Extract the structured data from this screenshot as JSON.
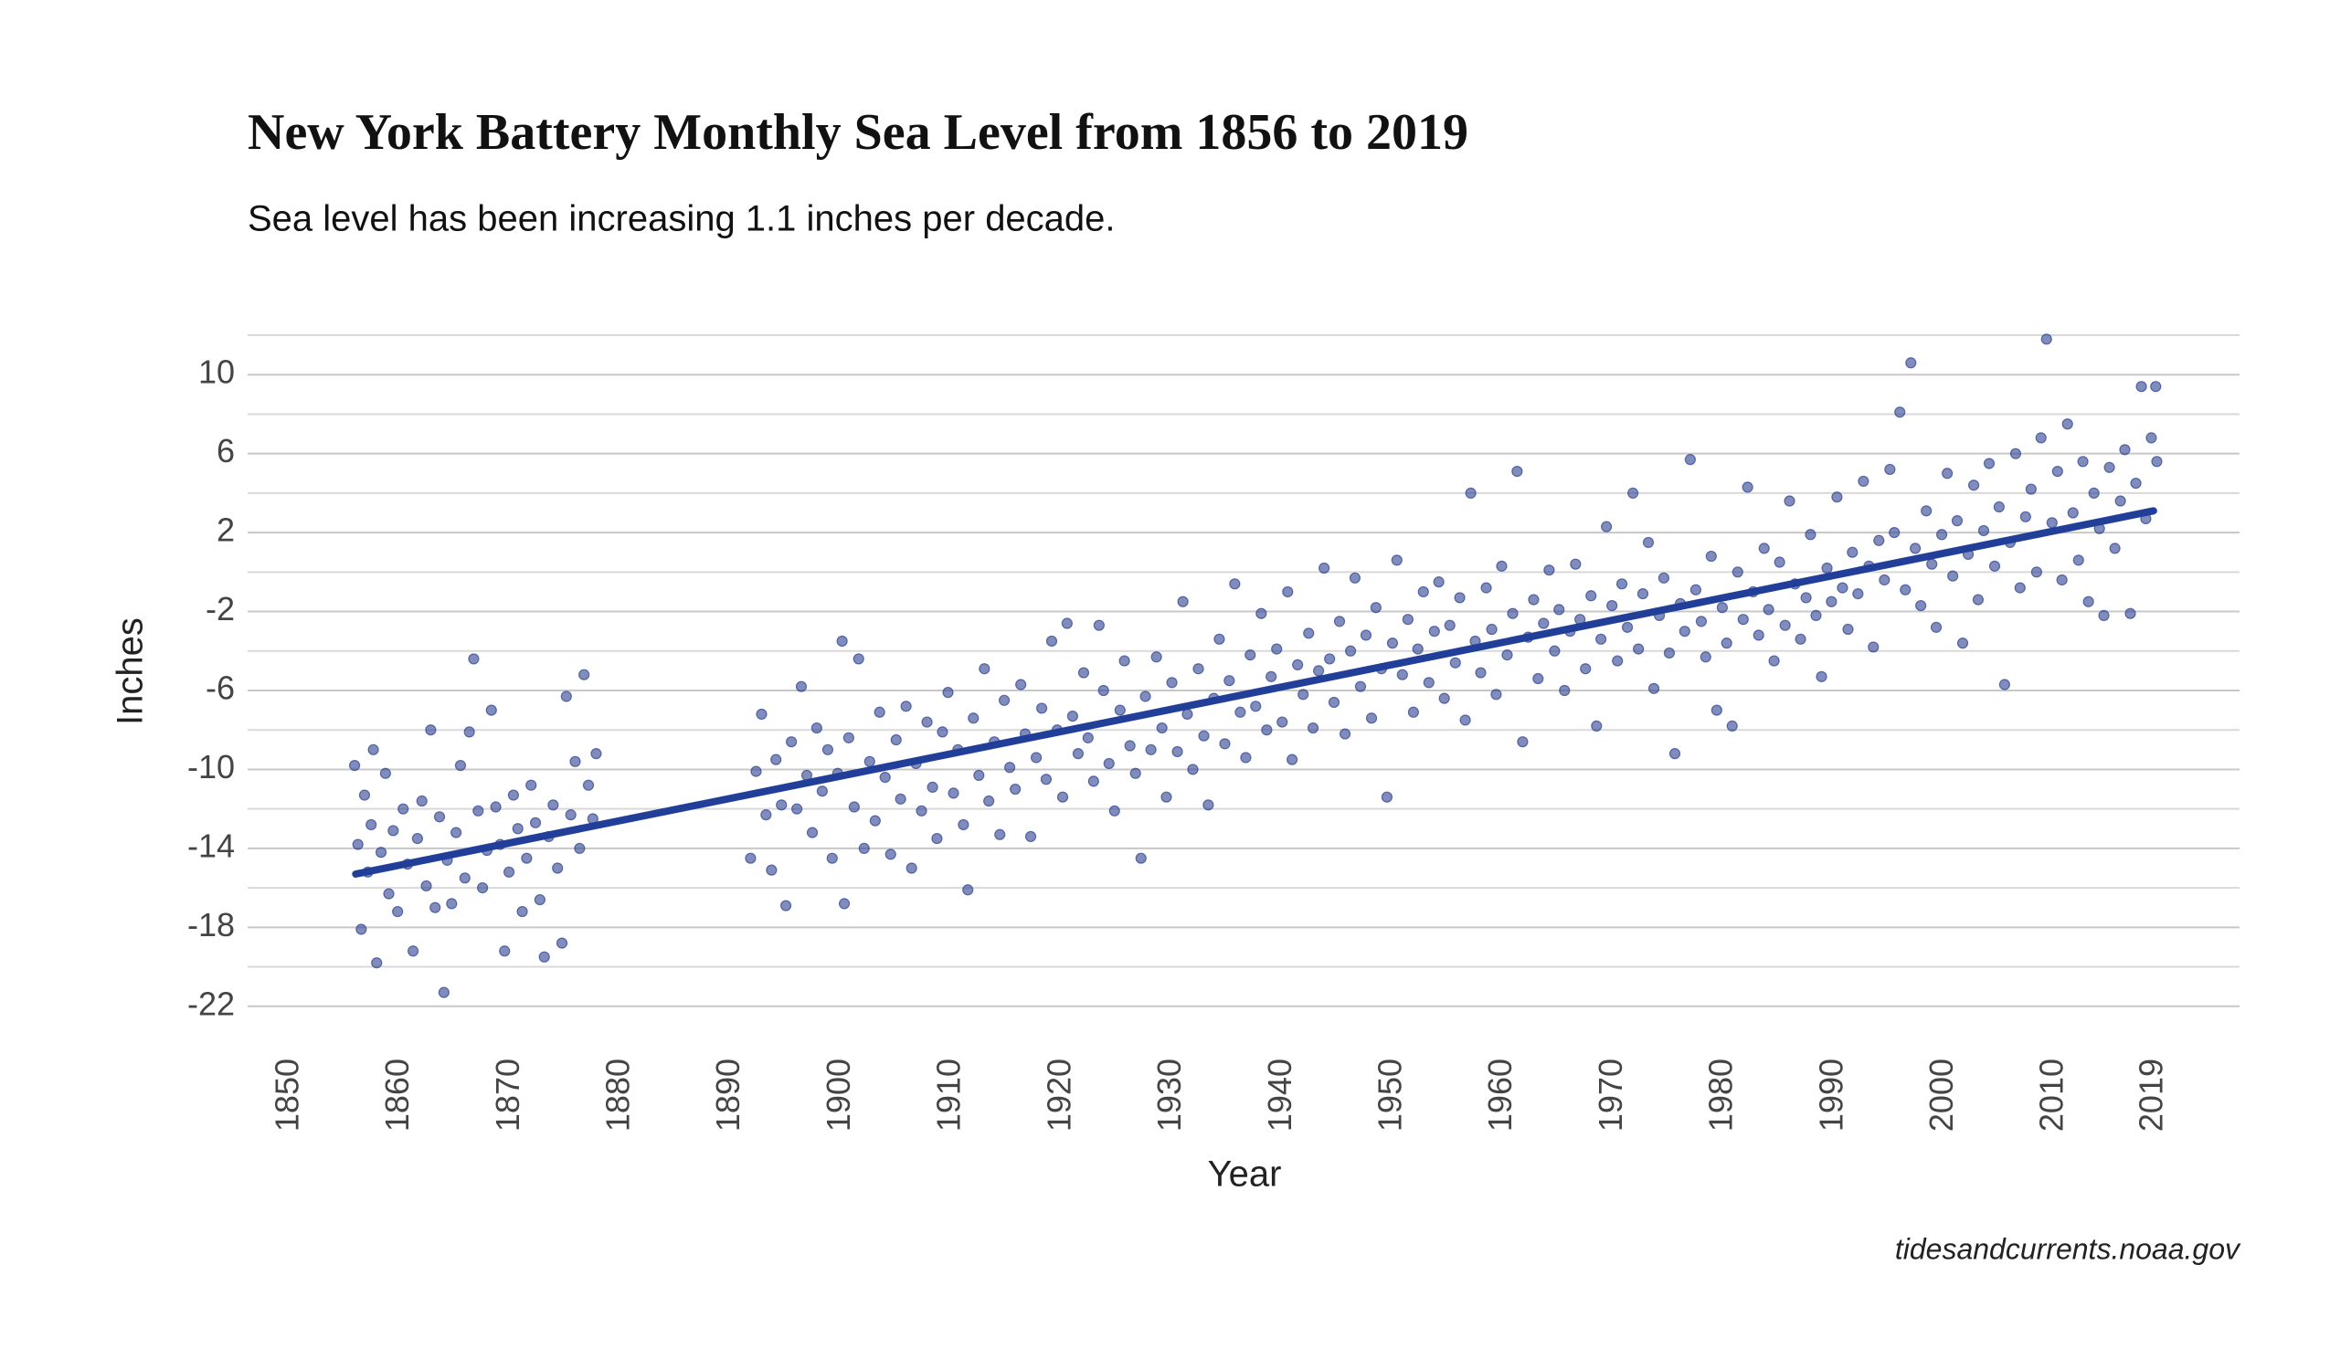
{
  "chart_data": {
    "type": "scatter",
    "title": "New York Battery Monthly Sea Level from 1856 to 2019",
    "subtitle": "Sea level has been increasing 1.1 inches per decade.",
    "x_label": "Year",
    "y_label": "Inches",
    "source": "tidesandcurrents.noaa.gov",
    "color": "#2b3f8f",
    "xlim": [
      1846.2,
      2026.8
    ],
    "ylim": [
      -24,
      12
    ],
    "xticks": [
      1850,
      1860,
      1870,
      1880,
      1890,
      1900,
      1910,
      1920,
      1930,
      1940,
      1950,
      1960,
      1970,
      1980,
      1990,
      2000,
      2010,
      2019
    ],
    "yticks": [
      -22,
      -18,
      -14,
      -10,
      -6,
      -2,
      2,
      6,
      10
    ],
    "minor_yticks": [
      -20,
      -16,
      -12,
      -8,
      -4,
      0,
      4,
      8,
      12
    ],
    "grid": true,
    "x": [
      1855.9,
      1856.2,
      1856.5,
      1856.8,
      1857.1,
      1857.4,
      1857.6,
      1857.9,
      1858.3,
      1858.7,
      1859.0,
      1859.4,
      1859.8,
      1860.3,
      1860.7,
      1861.2,
      1861.6,
      1862.0,
      1862.4,
      1862.8,
      1863.2,
      1863.6,
      1864.0,
      1864.3,
      1864.7,
      1865.1,
      1865.5,
      1865.9,
      1866.3,
      1866.7,
      1867.1,
      1867.5,
      1867.9,
      1868.3,
      1868.7,
      1869.1,
      1869.5,
      1869.9,
      1870.3,
      1870.7,
      1871.1,
      1871.5,
      1871.9,
      1872.3,
      1872.7,
      1873.1,
      1873.5,
      1873.9,
      1874.3,
      1874.7,
      1875.1,
      1875.5,
      1875.9,
      1876.3,
      1876.7,
      1877.1,
      1877.5,
      1877.8,
      1891.8,
      1892.3,
      1892.8,
      1893.2,
      1893.7,
      1894.1,
      1894.6,
      1895.0,
      1895.5,
      1896.0,
      1896.4,
      1896.9,
      1897.4,
      1897.8,
      1898.3,
      1898.8,
      1899.2,
      1899.7,
      1900.1,
      1900.3,
      1900.7,
      1901.2,
      1901.6,
      1902.1,
      1902.6,
      1903.1,
      1903.5,
      1904.0,
      1904.5,
      1905.0,
      1905.4,
      1905.9,
      1906.4,
      1906.8,
      1907.3,
      1907.8,
      1908.3,
      1908.7,
      1909.2,
      1909.7,
      1910.2,
      1910.6,
      1911.1,
      1911.5,
      1912.0,
      1912.5,
      1913.0,
      1913.4,
      1913.9,
      1914.4,
      1914.8,
      1915.3,
      1915.8,
      1916.3,
      1916.7,
      1917.2,
      1917.7,
      1918.2,
      1918.6,
      1919.1,
      1919.6,
      1920.1,
      1920.5,
      1921.0,
      1921.5,
      1922.0,
      1922.4,
      1922.9,
      1923.4,
      1923.8,
      1924.3,
      1924.8,
      1925.3,
      1925.7,
      1926.2,
      1926.7,
      1927.2,
      1927.6,
      1928.1,
      1928.6,
      1929.1,
      1929.5,
      1930.0,
      1930.5,
      1931.0,
      1931.4,
      1931.9,
      1932.4,
      1932.9,
      1933.3,
      1933.8,
      1934.3,
      1934.8,
      1935.2,
      1935.7,
      1936.2,
      1936.7,
      1937.1,
      1937.6,
      1938.1,
      1938.6,
      1939.0,
      1939.5,
      1940.0,
      1940.5,
      1940.9,
      1941.4,
      1941.9,
      1942.4,
      1942.8,
      1943.3,
      1943.8,
      1944.3,
      1944.7,
      1945.2,
      1945.7,
      1946.2,
      1946.6,
      1947.1,
      1947.6,
      1948.1,
      1948.5,
      1949.0,
      1949.5,
      1950.0,
      1950.4,
      1950.9,
      1951.4,
      1951.9,
      1952.3,
      1952.8,
      1953.3,
      1953.8,
      1954.2,
      1954.7,
      1955.2,
      1955.7,
      1956.1,
      1956.6,
      1957.1,
      1957.5,
      1958.0,
      1958.5,
      1959.0,
      1959.4,
      1959.9,
      1960.4,
      1960.9,
      1961.3,
      1961.8,
      1962.3,
      1962.8,
      1963.2,
      1963.7,
      1964.2,
      1964.7,
      1965.1,
      1965.6,
      1966.1,
      1966.6,
      1967.0,
      1967.5,
      1968.0,
      1968.5,
      1968.9,
      1969.4,
      1969.9,
      1970.4,
      1970.8,
      1971.3,
      1971.8,
      1972.3,
      1972.7,
      1973.2,
      1973.7,
      1974.2,
      1974.6,
      1975.1,
      1975.6,
      1976.1,
      1976.5,
      1977.0,
      1977.5,
      1978.0,
      1978.4,
      1978.9,
      1979.4,
      1979.9,
      1980.3,
      1980.8,
      1981.3,
      1981.8,
      1982.2,
      1982.7,
      1983.2,
      1983.7,
      1984.1,
      1984.6,
      1985.1,
      1985.6,
      1986.0,
      1986.5,
      1987.0,
      1987.5,
      1987.9,
      1988.4,
      1988.9,
      1989.4,
      1989.8,
      1990.3,
      1990.8,
      1991.3,
      1991.7,
      1992.2,
      1992.7,
      1993.2,
      1993.6,
      1994.1,
      1994.6,
      1995.1,
      1995.5,
      1996.0,
      1996.5,
      1997.0,
      1997.4,
      1997.9,
      1998.4,
      1998.9,
      1999.3,
      1999.8,
      2000.3,
      2000.8,
      2001.2,
      2001.7,
      2002.2,
      2002.7,
      2003.1,
      2003.6,
      2004.1,
      2004.6,
      2005.0,
      2005.5,
      2006.0,
      2006.5,
      2006.9,
      2007.4,
      2007.9,
      2008.4,
      2008.8,
      2009.3,
      2009.8,
      2010.3,
      2010.7,
      2011.2,
      2011.7,
      2012.2,
      2012.6,
      2013.1,
      2013.6,
      2014.1,
      2014.5,
      2015.0,
      2015.5,
      2016.0,
      2016.4,
      2016.9,
      2017.4,
      2017.9,
      2018.3,
      2018.8,
      2019.2,
      2019.3
    ],
    "values": [
      -9.8,
      -13.8,
      -18.1,
      -11.3,
      -15.2,
      -12.8,
      -9.0,
      -19.8,
      -14.2,
      -10.2,
      -16.3,
      -13.1,
      -17.2,
      -12.0,
      -14.8,
      -19.2,
      -13.5,
      -11.6,
      -15.9,
      -8.0,
      -17.0,
      -12.4,
      -21.3,
      -14.6,
      -16.8,
      -13.2,
      -9.8,
      -15.5,
      -8.1,
      -4.4,
      -12.1,
      -16.0,
      -14.1,
      -7.0,
      -11.9,
      -13.8,
      -19.2,
      -15.2,
      -11.3,
      -13.0,
      -17.2,
      -14.5,
      -10.8,
      -12.7,
      -16.6,
      -19.5,
      -13.4,
      -11.8,
      -15.0,
      -18.8,
      -6.3,
      -12.3,
      -9.6,
      -14.0,
      -5.2,
      -10.8,
      -12.5,
      -9.2,
      -14.5,
      -10.1,
      -7.2,
      -12.3,
      -15.1,
      -9.5,
      -11.8,
      -16.9,
      -8.6,
      -12.0,
      -5.8,
      -10.3,
      -13.2,
      -7.9,
      -11.1,
      -9.0,
      -14.5,
      -10.2,
      -3.5,
      -16.8,
      -8.4,
      -11.9,
      -4.4,
      -14.0,
      -9.6,
      -12.6,
      -7.1,
      -10.4,
      -14.3,
      -8.5,
      -11.5,
      -6.8,
      -15.0,
      -9.7,
      -12.1,
      -7.6,
      -10.9,
      -13.5,
      -8.1,
      -6.1,
      -11.2,
      -9.0,
      -12.8,
      -16.1,
      -7.4,
      -10.3,
      -4.9,
      -11.6,
      -8.6,
      -13.3,
      -6.5,
      -9.9,
      -11.0,
      -5.7,
      -8.2,
      -13.4,
      -9.4,
      -6.9,
      -10.5,
      -3.5,
      -8.0,
      -11.4,
      -2.6,
      -7.3,
      -9.2,
      -5.1,
      -8.4,
      -10.6,
      -2.7,
      -6.0,
      -9.7,
      -12.1,
      -7.0,
      -4.5,
      -8.8,
      -10.2,
      -14.5,
      -6.3,
      -9.0,
      -4.3,
      -7.9,
      -11.4,
      -5.6,
      -9.1,
      -1.5,
      -7.2,
      -10.0,
      -4.9,
      -8.3,
      -11.8,
      -6.4,
      -3.4,
      -8.7,
      -5.5,
      -0.6,
      -7.1,
      -9.4,
      -4.2,
      -6.8,
      -2.1,
      -8.0,
      -5.3,
      -3.9,
      -7.6,
      -1.0,
      -9.5,
      -4.7,
      -6.2,
      -3.1,
      -7.9,
      -5.0,
      0.2,
      -4.4,
      -6.6,
      -2.5,
      -8.2,
      -4.0,
      -0.3,
      -5.8,
      -3.2,
      -7.4,
      -1.8,
      -4.9,
      -11.4,
      -3.6,
      0.6,
      -5.2,
      -2.4,
      -7.1,
      -3.9,
      -1.0,
      -5.6,
      -3.0,
      -0.5,
      -6.4,
      -2.7,
      -4.6,
      -1.3,
      -7.5,
      4.0,
      -3.5,
      -5.1,
      -0.8,
      -2.9,
      -6.2,
      0.3,
      -4.2,
      -2.1,
      5.1,
      -8.6,
      -3.3,
      -1.4,
      -5.4,
      -2.6,
      0.1,
      -4.0,
      -1.9,
      -6.0,
      -3.0,
      0.4,
      -2.4,
      -4.9,
      -1.2,
      -7.8,
      -3.4,
      2.3,
      -1.7,
      -4.5,
      -0.6,
      -2.8,
      4.0,
      -3.9,
      -1.1,
      1.5,
      -5.9,
      -2.2,
      -0.3,
      -4.1,
      -9.2,
      -1.6,
      -3.0,
      5.7,
      -0.9,
      -2.5,
      -4.3,
      0.8,
      -7.0,
      -1.8,
      -3.6,
      -7.8,
      0.0,
      -2.4,
      4.3,
      -1.0,
      -3.2,
      1.2,
      -1.9,
      -4.5,
      0.5,
      -2.7,
      3.6,
      -0.6,
      -3.4,
      -1.3,
      1.9,
      -2.2,
      -5.3,
      0.2,
      -1.5,
      3.8,
      -0.8,
      -2.9,
      1.0,
      -1.1,
      4.6,
      0.3,
      -3.8,
      1.6,
      -0.4,
      5.2,
      2.0,
      8.1,
      -0.9,
      10.6,
      1.2,
      -1.7,
      3.1,
      0.4,
      -2.8,
      1.9,
      5.0,
      -0.2,
      2.6,
      -3.6,
      0.9,
      4.4,
      -1.4,
      2.1,
      5.5,
      0.3,
      3.3,
      -5.7,
      1.5,
      6.0,
      -0.8,
      2.8,
      4.2,
      0.0,
      6.8,
      11.8,
      2.5,
      5.1,
      -0.4,
      7.5,
      3.0,
      0.6,
      5.6,
      -1.5,
      4.0,
      2.2,
      -2.2,
      5.3,
      1.2,
      3.6,
      6.2,
      -2.1,
      4.5,
      9.4,
      2.7,
      6.8,
      9.4,
      5.6
    ],
    "trend": {
      "color": "#213f99",
      "x": [
        1856,
        2019
      ],
      "values": [
        -15.3,
        3.1
      ]
    }
  }
}
